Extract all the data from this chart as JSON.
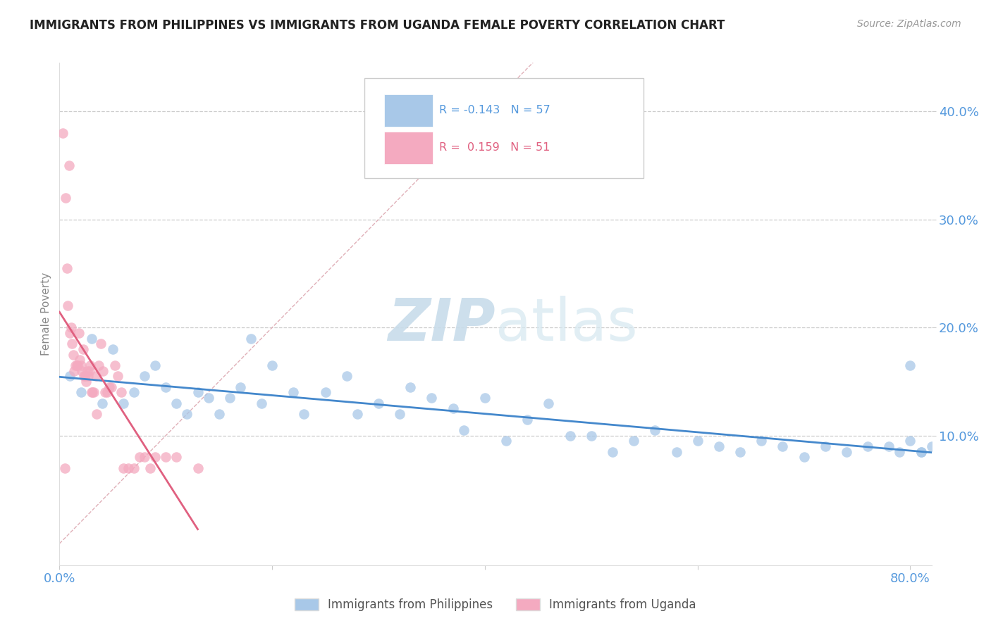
{
  "title": "IMMIGRANTS FROM PHILIPPINES VS IMMIGRANTS FROM UGANDA FEMALE POVERTY CORRELATION CHART",
  "source": "Source: ZipAtlas.com",
  "ylabel": "Female Poverty",
  "xlim": [
    0.0,
    0.82
  ],
  "ylim": [
    -0.02,
    0.445
  ],
  "legend_label1": "Immigrants from Philippines",
  "legend_label2": "Immigrants from Uganda",
  "r_phil": -0.143,
  "n_phil": 57,
  "r_uganda": 0.159,
  "n_uganda": 51,
  "watermark_zip": "ZIP",
  "watermark_atlas": "atlas",
  "blue_color": "#a8c8e8",
  "pink_color": "#f4aac0",
  "blue_line_color": "#4488cc",
  "pink_line_color": "#e06080",
  "diag_line_color": "#e0b0b8",
  "grid_color": "#cccccc",
  "title_color": "#222222",
  "axis_label_color": "#5599dd",
  "philippines_x": [
    0.01,
    0.02,
    0.03,
    0.04,
    0.05,
    0.06,
    0.07,
    0.08,
    0.09,
    0.1,
    0.11,
    0.12,
    0.13,
    0.14,
    0.15,
    0.16,
    0.17,
    0.18,
    0.19,
    0.2,
    0.22,
    0.23,
    0.25,
    0.27,
    0.28,
    0.3,
    0.32,
    0.33,
    0.35,
    0.37,
    0.38,
    0.4,
    0.42,
    0.44,
    0.46,
    0.48,
    0.5,
    0.52,
    0.54,
    0.56,
    0.58,
    0.6,
    0.62,
    0.64,
    0.66,
    0.68,
    0.7,
    0.72,
    0.74,
    0.76,
    0.78,
    0.79,
    0.8,
    0.8,
    0.81,
    0.81,
    0.82
  ],
  "philippines_y": [
    0.155,
    0.14,
    0.19,
    0.13,
    0.18,
    0.13,
    0.14,
    0.155,
    0.165,
    0.145,
    0.13,
    0.12,
    0.14,
    0.135,
    0.12,
    0.135,
    0.145,
    0.19,
    0.13,
    0.165,
    0.14,
    0.12,
    0.14,
    0.155,
    0.12,
    0.13,
    0.12,
    0.145,
    0.135,
    0.125,
    0.105,
    0.135,
    0.095,
    0.115,
    0.13,
    0.1,
    0.1,
    0.085,
    0.095,
    0.105,
    0.085,
    0.095,
    0.09,
    0.085,
    0.095,
    0.09,
    0.08,
    0.09,
    0.085,
    0.09,
    0.09,
    0.085,
    0.165,
    0.095,
    0.085,
    0.085,
    0.09
  ],
  "uganda_x": [
    0.003,
    0.005,
    0.006,
    0.007,
    0.008,
    0.009,
    0.01,
    0.011,
    0.012,
    0.013,
    0.014,
    0.015,
    0.016,
    0.017,
    0.018,
    0.019,
    0.02,
    0.021,
    0.022,
    0.023,
    0.024,
    0.025,
    0.026,
    0.027,
    0.028,
    0.029,
    0.03,
    0.031,
    0.032,
    0.034,
    0.035,
    0.037,
    0.039,
    0.041,
    0.043,
    0.045,
    0.047,
    0.049,
    0.052,
    0.055,
    0.058,
    0.06,
    0.065,
    0.07,
    0.075,
    0.08,
    0.085,
    0.09,
    0.1,
    0.11,
    0.13
  ],
  "uganda_y": [
    0.38,
    0.07,
    0.32,
    0.255,
    0.22,
    0.35,
    0.195,
    0.2,
    0.185,
    0.175,
    0.16,
    0.165,
    0.165,
    0.165,
    0.195,
    0.17,
    0.165,
    0.16,
    0.18,
    0.155,
    0.155,
    0.15,
    0.16,
    0.155,
    0.16,
    0.165,
    0.14,
    0.14,
    0.14,
    0.155,
    0.12,
    0.165,
    0.185,
    0.16,
    0.14,
    0.14,
    0.145,
    0.145,
    0.165,
    0.155,
    0.14,
    0.07,
    0.07,
    0.07,
    0.08,
    0.08,
    0.07,
    0.08,
    0.08,
    0.08,
    0.07
  ]
}
